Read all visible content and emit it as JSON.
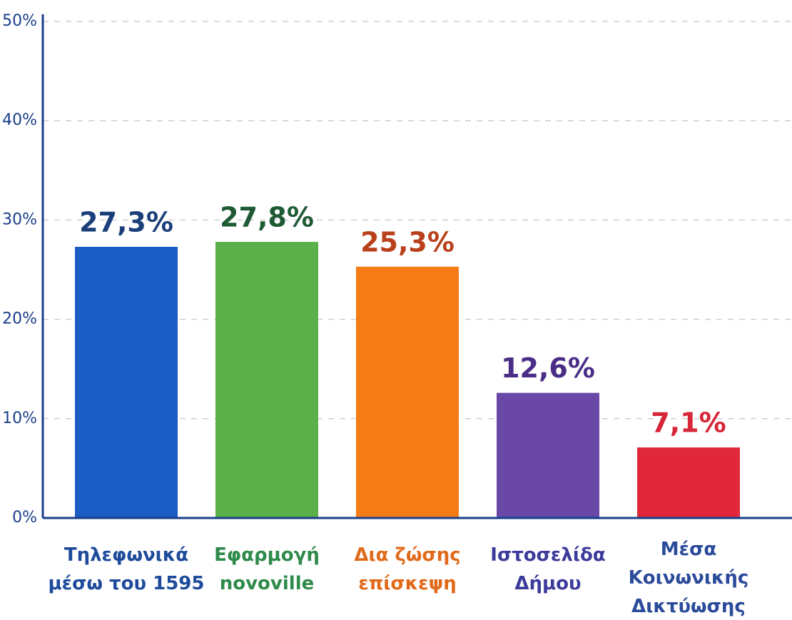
{
  "chart_data": {
    "type": "bar",
    "categories": [
      "Τηλεφωνικά\nμέσω του 1595",
      "Εφαρμογή\nnovoville",
      "Δια ζώσης\nεπίσκεψη",
      "Ιστοσελίδα\nΔήμου",
      "Μέσα\nΚοινωνικής\nΔικτύωσης"
    ],
    "values": [
      27.3,
      27.8,
      25.3,
      12.6,
      7.1
    ],
    "value_labels": [
      "27,3%",
      "27,8%",
      "25,3%",
      "12,6%",
      "7,1%"
    ],
    "colors": [
      "#1b5cc4",
      "#5bb04a",
      "#f47b16",
      "#6a48a8",
      "#e0283a"
    ],
    "value_label_colors": [
      "#1a3f7a",
      "#1f5a35",
      "#b8401a",
      "#4a2d86",
      "#d62638"
    ],
    "category_label_colors": [
      "#1d4a9a",
      "#2e8a4a",
      "#e06a1a",
      "#3c3a9a",
      "#2a4a9a"
    ],
    "ylim": [
      0,
      50
    ],
    "yticks": [
      {
        "value": 0,
        "label": "0%"
      },
      {
        "value": 10,
        "label": "10%"
      },
      {
        "value": 20,
        "label": "20%"
      },
      {
        "value": 30,
        "label": "30%"
      },
      {
        "value": 40,
        "label": "40%"
      },
      {
        "value": 50,
        "label": "50%"
      }
    ],
    "grid": true
  }
}
